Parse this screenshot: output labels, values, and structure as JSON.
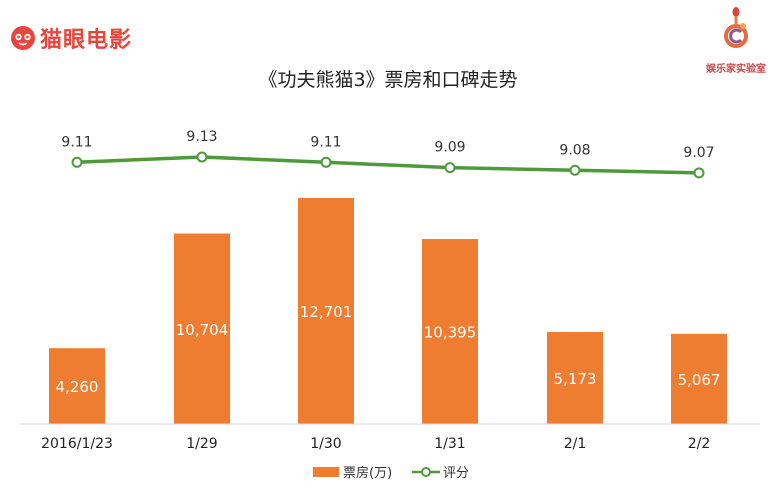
{
  "brand": {
    "left_logo_text": "猫眼电影",
    "left_logo_color": "#e8463c",
    "right_logo_text": "娱乐家实验室",
    "right_logo_color": "#c9494a"
  },
  "colors": {
    "bar": "#ee7d31",
    "line": "#4e9a3b",
    "bar_label": "#ffffff",
    "axis": "#d9d9d9"
  },
  "chart_data": {
    "type": "bar",
    "title": "《功夫熊猫3》票房和口碑走势",
    "categories": [
      "2016/1/23",
      "1/29",
      "1/30",
      "1/31",
      "2/1",
      "2/2"
    ],
    "series": [
      {
        "name": "票房(万)",
        "type": "bar",
        "values": [
          4260,
          10704,
          12701,
          10395,
          5173,
          5067
        ],
        "labels": [
          "4,260",
          "10,704",
          "12,701",
          "10,395",
          "5,173",
          "5,067"
        ]
      },
      {
        "name": "评分",
        "type": "line",
        "values": [
          9.11,
          9.13,
          9.11,
          9.09,
          9.08,
          9.07
        ],
        "labels": [
          "9.11",
          "9.13",
          "9.11",
          "9.09",
          "9.08",
          "9.07"
        ]
      }
    ],
    "legend": "bottom",
    "grid": false
  }
}
